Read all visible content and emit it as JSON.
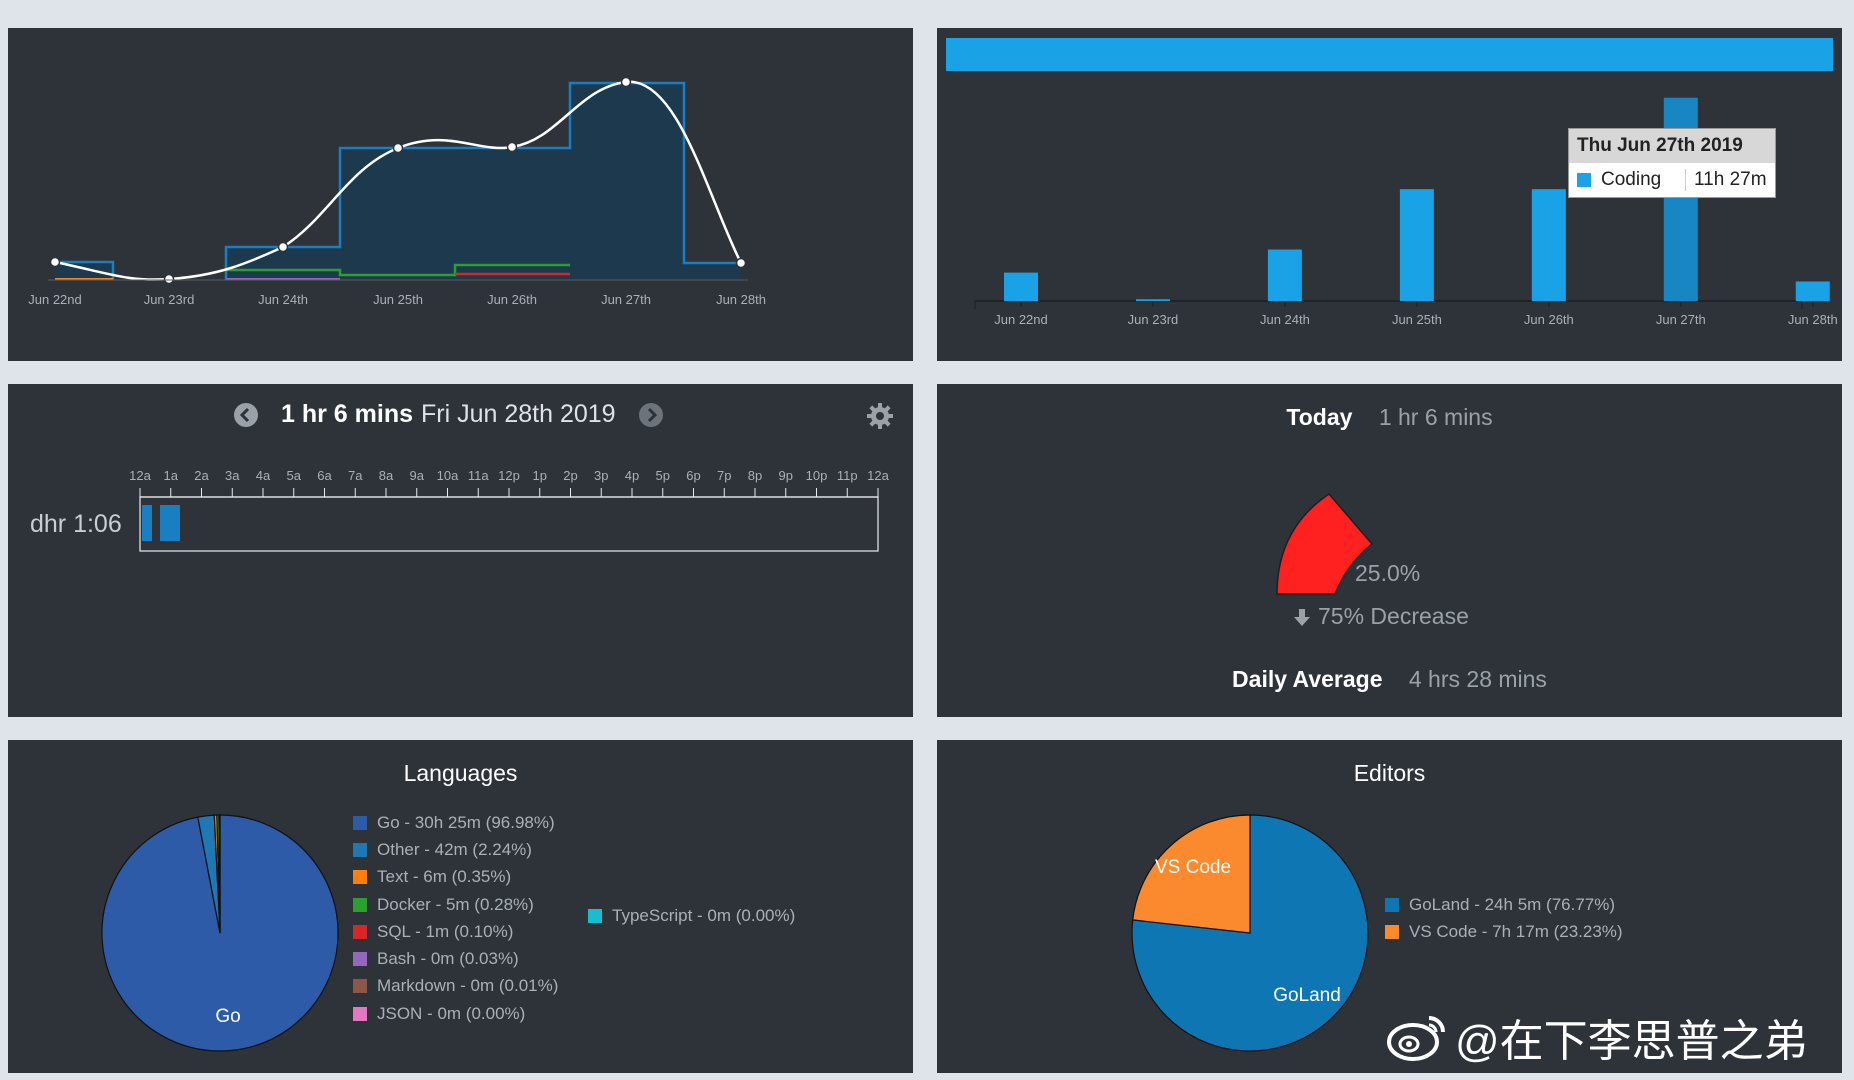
{
  "activity_chart": {
    "x_labels": [
      "Jun 22nd",
      "Jun 23rd",
      "Jun 24th",
      "Jun 25th",
      "Jun 26th",
      "Jun 27th",
      "Jun 28th"
    ],
    "colors": {
      "line": "#ffffff",
      "bars": "#1a7fc1",
      "other": "#2ca02c",
      "sql": "#d62728",
      "text": "#ff7f0e",
      "bash": "#9467bd"
    }
  },
  "chart_data": {
    "type": "bar",
    "categories": [
      "Jun 22nd",
      "Jun 23rd",
      "Jun 24th",
      "Jun 25th",
      "Jun 26th",
      "Jun 27th",
      "Jun 28th"
    ],
    "series": [
      {
        "name": "Coding",
        "values": [
          1.6,
          0.1,
          2.9,
          6.3,
          6.3,
          11.45,
          1.1
        ],
        "color": "#19a2e6"
      }
    ],
    "unit": "hours",
    "tooltip": {
      "date": "Thu Jun 27th 2019",
      "series": "Coding",
      "value": "11h 27m"
    }
  },
  "timeline": {
    "prev_icon": "chevron-left-icon",
    "next_icon": "chevron-right-icon",
    "total": "1 hr 6 mins",
    "date": "Fri Jun 28th 2019",
    "hours": [
      "12a",
      "1a",
      "2a",
      "3a",
      "4a",
      "5a",
      "6a",
      "7a",
      "8a",
      "9a",
      "10a",
      "11a",
      "12p",
      "1p",
      "2p",
      "3p",
      "4p",
      "5p",
      "6p",
      "7p",
      "8p",
      "9p",
      "10p",
      "11p",
      "12a"
    ],
    "row_label": "dhr 1:06",
    "settings_icon": "gear-icon"
  },
  "today": {
    "label": "Today",
    "value": "1 hr 6 mins",
    "percent": "25.0%",
    "change": "75% Decrease",
    "change_icon": "arrow-down-icon",
    "avg_label": "Daily Average",
    "avg_value": "4 hrs 28 mins",
    "gauge_fraction": 0.25,
    "gauge_color": "#ff2020"
  },
  "languages": {
    "title": "Languages",
    "pie_label": "Go",
    "items": [
      {
        "label": "Go - 30h 25m (96.98%)",
        "color": "#2d5ba8",
        "pct": 96.98
      },
      {
        "label": "Other - 42m (2.24%)",
        "color": "#1f77b4",
        "pct": 2.24
      },
      {
        "label": "Text - 6m (0.35%)",
        "color": "#ff7f0e",
        "pct": 0.35
      },
      {
        "label": "Docker - 5m (0.28%)",
        "color": "#2ca02c",
        "pct": 0.28
      },
      {
        "label": "SQL - 1m (0.10%)",
        "color": "#d62728",
        "pct": 0.1
      },
      {
        "label": "Bash - 0m (0.03%)",
        "color": "#9467bd",
        "pct": 0.03
      },
      {
        "label": "Markdown - 0m (0.01%)",
        "color": "#8c564b",
        "pct": 0.01
      },
      {
        "label": "JSON - 0m (0.00%)",
        "color": "#e377c2",
        "pct": 0.0
      },
      {
        "label": "TypeScript - 0m (0.00%)",
        "color": "#17becf",
        "pct": 0.0
      }
    ]
  },
  "editors": {
    "title": "Editors",
    "items": [
      {
        "label": "GoLand - 24h 5m (76.77%)",
        "name": "GoLand",
        "color": "#0f76b4",
        "pct": 76.77
      },
      {
        "label": "VS Code - 7h 17m (23.23%)",
        "name": "VS Code",
        "color": "#fb8a2e",
        "pct": 23.23
      }
    ]
  },
  "watermark": "@在下李思普之弟"
}
